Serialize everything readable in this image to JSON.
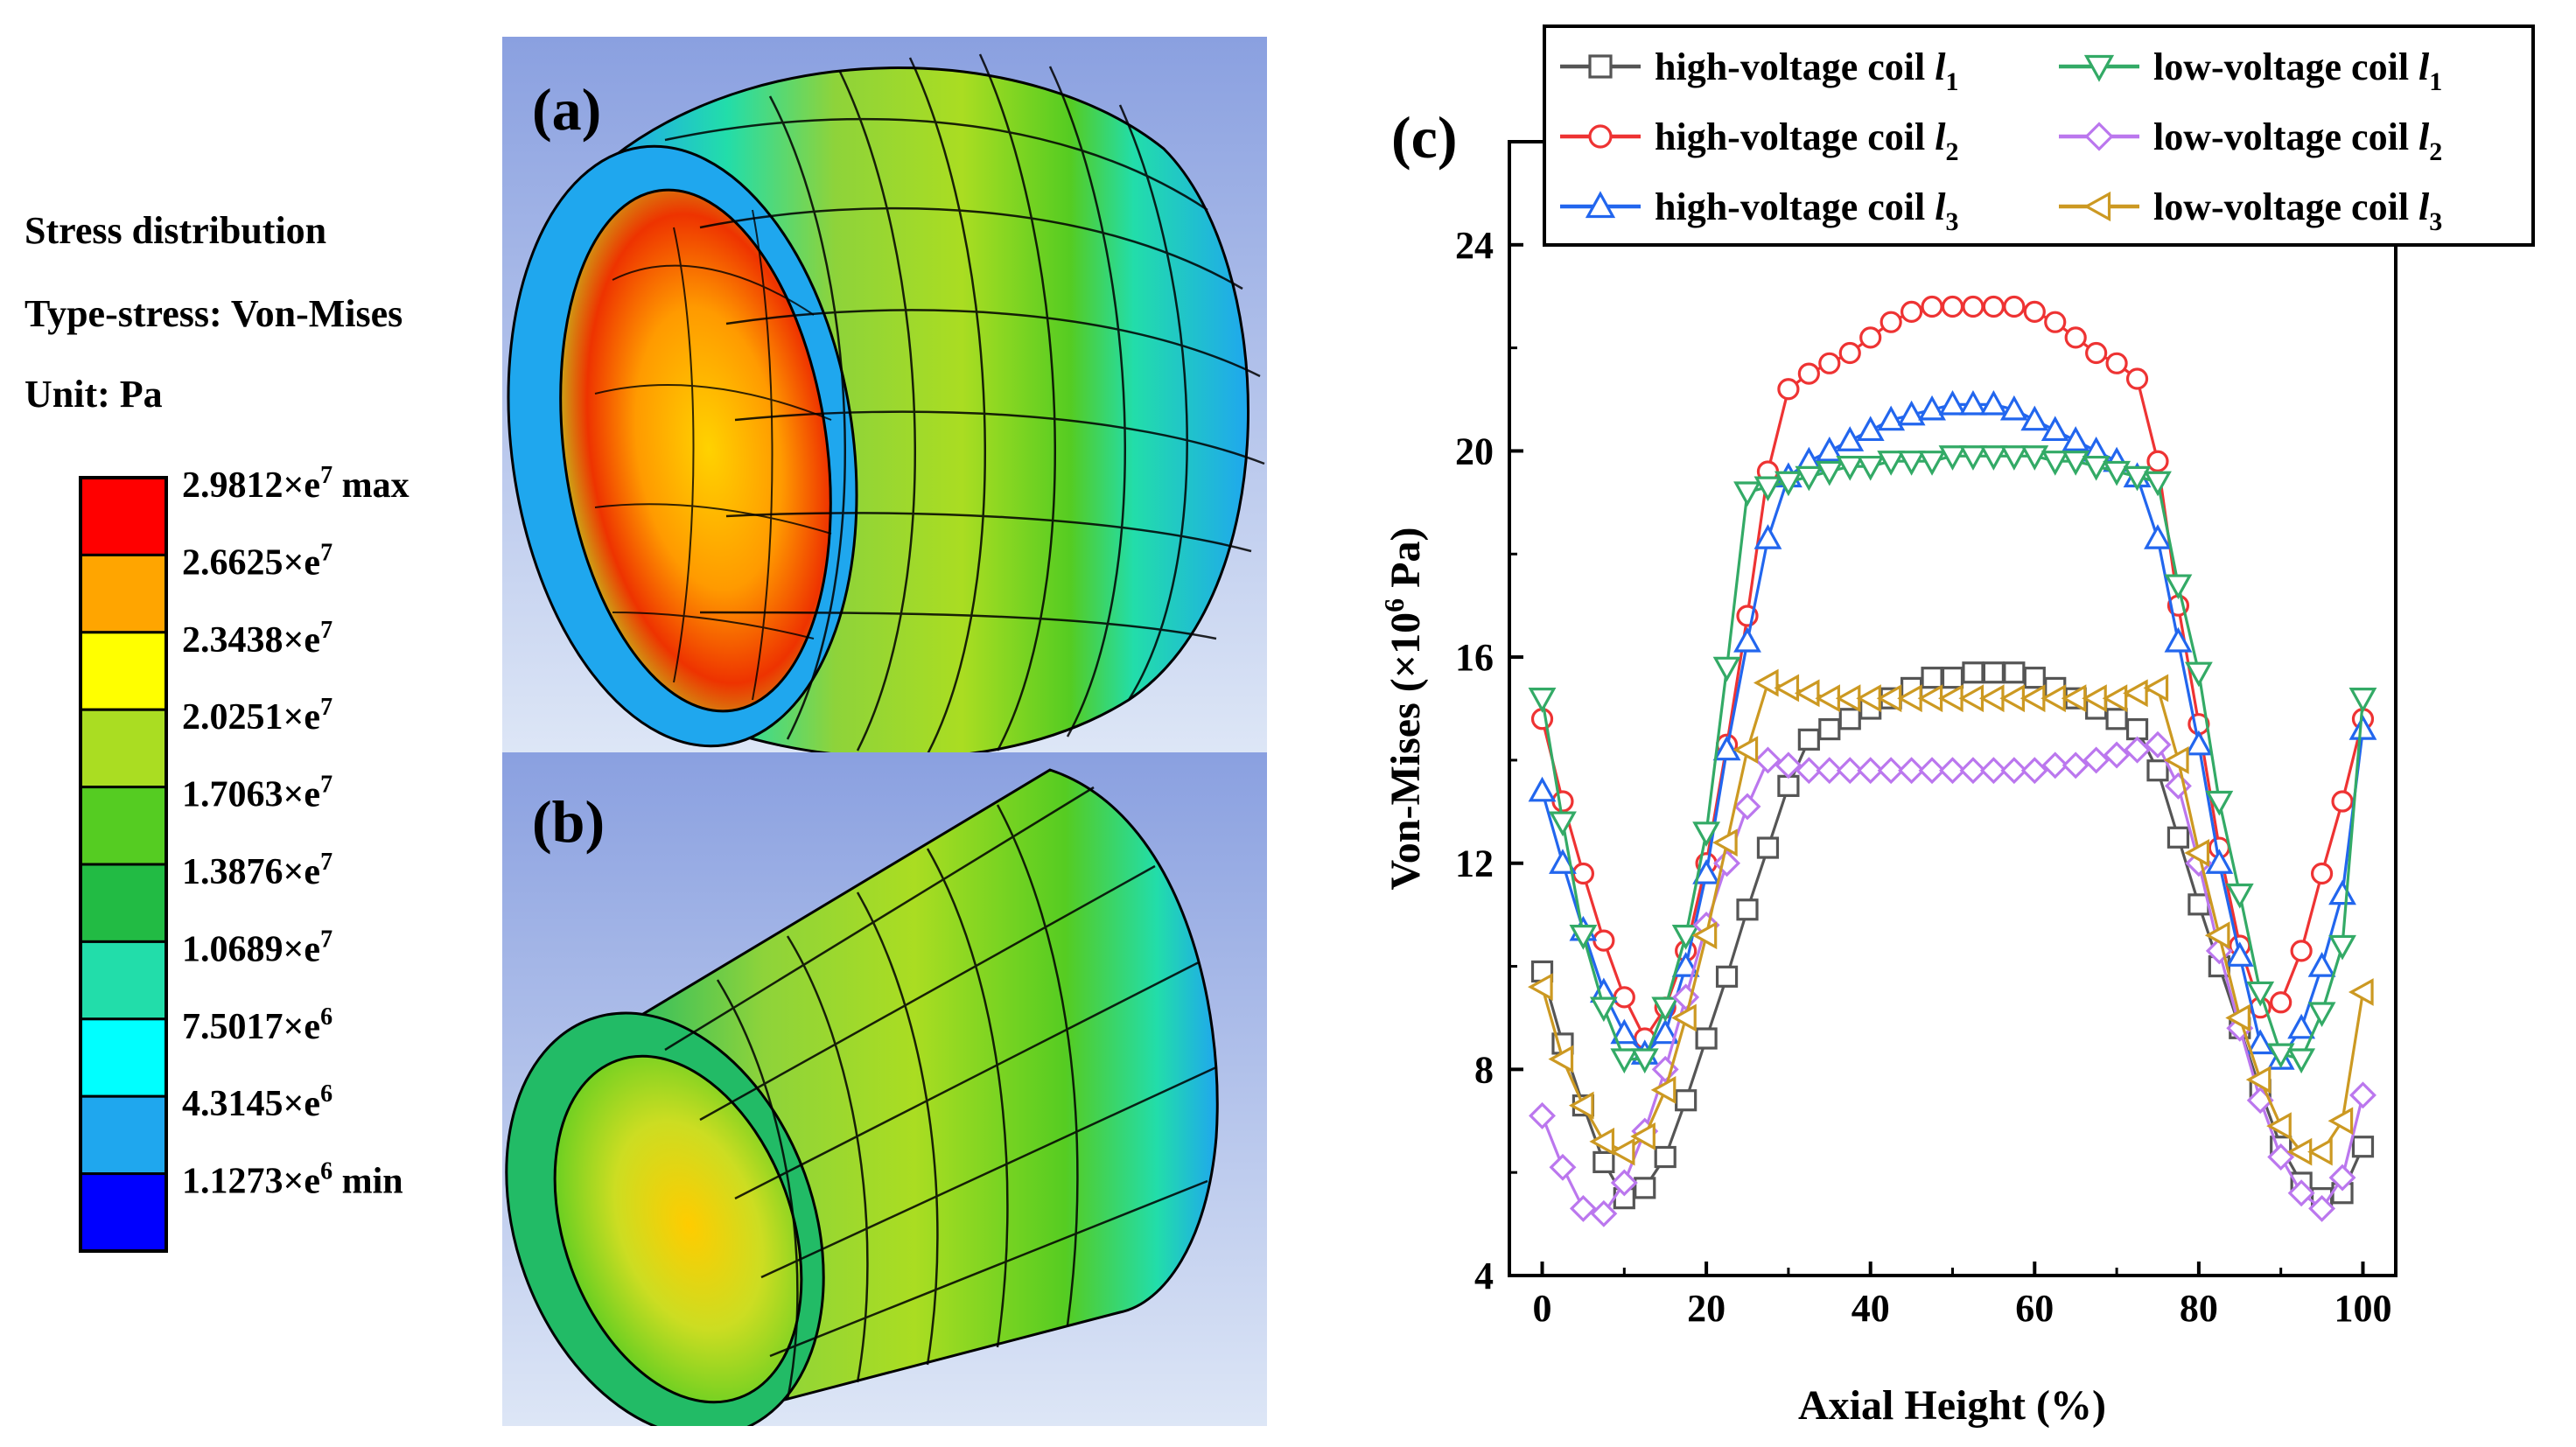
{
  "stress_legend": {
    "title": "Stress distribution",
    "type_label": "Type-stress: Von-Mises",
    "unit_label": "Unit: Pa",
    "levels": [
      {
        "label": "2.9812×e",
        "exp": "7",
        "suffix": " max",
        "color": "#ff0000"
      },
      {
        "label": "2.6625×e",
        "exp": "7",
        "suffix": "",
        "color": "#ffa500"
      },
      {
        "label": "2.3438×e",
        "exp": "7",
        "suffix": "",
        "color": "#ffff00"
      },
      {
        "label": "2.0251×e",
        "exp": "7",
        "suffix": "",
        "color": "#aadd22"
      },
      {
        "label": "1.7063×e",
        "exp": "7",
        "suffix": "",
        "color": "#55cc22"
      },
      {
        "label": "1.3876×e",
        "exp": "7",
        "suffix": "",
        "color": "#22bb44"
      },
      {
        "label": "1.0689×e",
        "exp": "7",
        "suffix": "",
        "color": "#22ddaa"
      },
      {
        "label": "7.5017×e",
        "exp": "6",
        "suffix": "",
        "color": "#00ffff"
      },
      {
        "label": "4.3145×e",
        "exp": "6",
        "suffix": "",
        "color": "#1fa7ee"
      },
      {
        "label": "1.1273×e",
        "exp": "6",
        "suffix": " min",
        "color": "#0000ff"
      }
    ]
  },
  "panels": {
    "a_label": "(a)",
    "b_label": "(b)",
    "c_label": "(c)"
  },
  "chart_data": {
    "type": "line",
    "title": "",
    "xlabel": "Axial Height (%)",
    "ylabel_main": "Von-Mises (×10",
    "ylabel_exp": "6",
    "ylabel_unit": " Pa)",
    "xlim": [
      -4,
      104
    ],
    "ylim": [
      4,
      26
    ],
    "xticks": [
      0,
      20,
      40,
      60,
      80,
      100
    ],
    "yticks": [
      4,
      8,
      12,
      16,
      20,
      24
    ],
    "x": [
      0,
      2.5,
      5,
      7.5,
      10,
      12.5,
      15,
      17.5,
      20,
      22.5,
      25,
      27.5,
      30,
      32.5,
      35,
      37.5,
      40,
      42.5,
      45,
      47.5,
      50,
      52.5,
      55,
      57.5,
      60,
      62.5,
      65,
      67.5,
      70,
      72.5,
      75,
      77.5,
      80,
      82.5,
      85,
      87.5,
      90,
      92.5,
      95,
      97.5,
      100
    ],
    "series": [
      {
        "name": "high-voltage coil ",
        "sub": "1",
        "color": "#555555",
        "marker": "square",
        "values": [
          9.9,
          8.5,
          7.3,
          6.2,
          5.5,
          5.7,
          6.3,
          7.4,
          8.6,
          9.8,
          11.1,
          12.3,
          13.5,
          14.4,
          14.6,
          14.8,
          15.0,
          15.2,
          15.4,
          15.6,
          15.6,
          15.7,
          15.7,
          15.7,
          15.6,
          15.4,
          15.2,
          15.0,
          14.8,
          14.6,
          13.8,
          12.5,
          11.2,
          10.0,
          8.8,
          7.6,
          6.5,
          5.8,
          5.5,
          5.6,
          6.5
        ]
      },
      {
        "name": "high-voltage coil ",
        "sub": "2",
        "color": "#ee3333",
        "marker": "circle",
        "values": [
          14.8,
          13.2,
          11.8,
          10.5,
          9.4,
          8.6,
          9.2,
          10.3,
          12.0,
          14.3,
          16.8,
          19.6,
          21.2,
          21.5,
          21.7,
          21.9,
          22.2,
          22.5,
          22.7,
          22.8,
          22.8,
          22.8,
          22.8,
          22.8,
          22.7,
          22.5,
          22.2,
          21.9,
          21.7,
          21.4,
          19.8,
          17.0,
          14.7,
          12.3,
          10.4,
          9.2,
          9.3,
          10.3,
          11.8,
          13.2,
          14.8
        ]
      },
      {
        "name": "high-voltage coil ",
        "sub": "3",
        "color": "#2266ee",
        "marker": "triangle-up",
        "values": [
          13.4,
          12.0,
          10.7,
          9.5,
          8.7,
          8.3,
          8.7,
          10.0,
          11.8,
          14.2,
          16.3,
          18.3,
          19.5,
          19.8,
          20.0,
          20.2,
          20.4,
          20.6,
          20.7,
          20.8,
          20.9,
          20.9,
          20.9,
          20.8,
          20.6,
          20.4,
          20.2,
          20.0,
          19.8,
          19.5,
          18.3,
          16.3,
          14.3,
          12.0,
          10.2,
          8.5,
          8.2,
          8.8,
          10.0,
          11.4,
          14.6
        ]
      },
      {
        "name": "low-voltage coil  ",
        "sub": "1",
        "color": "#33aa66",
        "marker": "triangle-down",
        "values": [
          15.2,
          12.8,
          10.6,
          9.2,
          8.2,
          8.2,
          9.2,
          10.6,
          12.6,
          15.8,
          19.2,
          19.3,
          19.4,
          19.5,
          19.6,
          19.7,
          19.7,
          19.8,
          19.8,
          19.8,
          19.9,
          19.9,
          19.9,
          19.9,
          19.9,
          19.8,
          19.8,
          19.7,
          19.6,
          19.5,
          19.4,
          17.4,
          15.7,
          13.2,
          11.4,
          9.5,
          8.3,
          8.2,
          9.1,
          10.4,
          15.2
        ]
      },
      {
        "name": "low-voltage coil  ",
        "sub": "2",
        "color": "#bb77ee",
        "marker": "diamond",
        "values": [
          7.1,
          6.1,
          5.3,
          5.2,
          5.8,
          6.8,
          8.0,
          9.4,
          10.8,
          12.0,
          13.1,
          14.0,
          13.9,
          13.8,
          13.8,
          13.8,
          13.8,
          13.8,
          13.8,
          13.8,
          13.8,
          13.8,
          13.8,
          13.8,
          13.8,
          13.9,
          13.9,
          14.0,
          14.1,
          14.2,
          14.3,
          13.5,
          12.0,
          10.3,
          8.8,
          7.4,
          6.3,
          5.6,
          5.3,
          5.9,
          7.5
        ]
      },
      {
        "name": "low-voltage coil  ",
        "sub": "3",
        "color": "#cc9922",
        "marker": "triangle-left",
        "values": [
          9.6,
          8.2,
          7.3,
          6.6,
          6.4,
          6.7,
          7.6,
          9.0,
          10.6,
          12.4,
          14.2,
          15.5,
          15.4,
          15.3,
          15.2,
          15.2,
          15.2,
          15.2,
          15.2,
          15.2,
          15.2,
          15.2,
          15.2,
          15.2,
          15.2,
          15.2,
          15.2,
          15.2,
          15.2,
          15.3,
          15.4,
          14.0,
          12.2,
          10.6,
          9.0,
          7.8,
          6.9,
          6.4,
          6.4,
          7.0,
          9.5
        ]
      }
    ],
    "legend_placement": "top"
  }
}
